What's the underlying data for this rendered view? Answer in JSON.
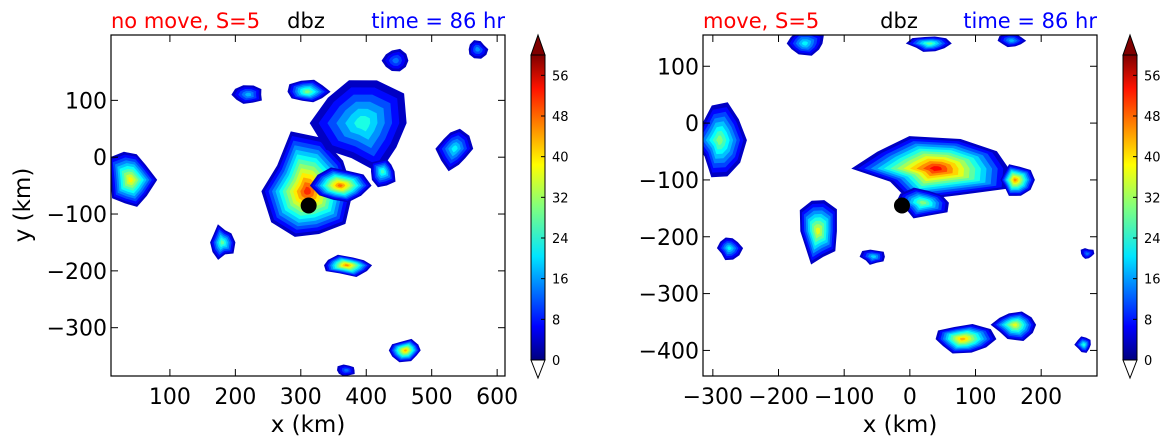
{
  "chart_data": [
    {
      "type": "heatmap",
      "title_left": "no move, S=5",
      "title_center": "dbz",
      "title_right": "time = 86 hr",
      "xlabel": "x (km)",
      "ylabel": "y (km)",
      "xlim": [
        10,
        612
      ],
      "ylim": [
        -385,
        215
      ],
      "xticks": [
        100,
        200,
        300,
        400,
        500,
        600
      ],
      "yticks": [
        100,
        0,
        -100,
        -200,
        -300
      ],
      "marker": {
        "x": 312,
        "y": -85
      },
      "colorbar": {
        "min": 0,
        "max": 60,
        "ticks": [
          0,
          8,
          16,
          24,
          32,
          40,
          48,
          56
        ],
        "extend": "both"
      },
      "cells": [
        {
          "x": 310,
          "y": -60,
          "rx": 70,
          "ry": 95,
          "peak": 50
        },
        {
          "x": 360,
          "y": -50,
          "rx": 40,
          "ry": 30,
          "peak": 46
        },
        {
          "x": 370,
          "y": -190,
          "rx": 40,
          "ry": 18,
          "peak": 44
        },
        {
          "x": 310,
          "y": 115,
          "rx": 30,
          "ry": 20,
          "peak": 30
        },
        {
          "x": 395,
          "y": 60,
          "rx": 70,
          "ry": 80,
          "peak": 24
        },
        {
          "x": 40,
          "y": -40,
          "rx": 35,
          "ry": 55,
          "peak": 38
        },
        {
          "x": 460,
          "y": -340,
          "rx": 25,
          "ry": 18,
          "peak": 42
        },
        {
          "x": 535,
          "y": 15,
          "rx": 25,
          "ry": 35,
          "peak": 22
        },
        {
          "x": 425,
          "y": -25,
          "rx": 20,
          "ry": 25,
          "peak": 26
        },
        {
          "x": 180,
          "y": -150,
          "rx": 18,
          "ry": 28,
          "peak": 28
        },
        {
          "x": 220,
          "y": 110,
          "rx": 22,
          "ry": 15,
          "peak": 18
        },
        {
          "x": 570,
          "y": 190,
          "rx": 15,
          "ry": 15,
          "peak": 16
        },
        {
          "x": 370,
          "y": -375,
          "rx": 14,
          "ry": 10,
          "peak": 14
        },
        {
          "x": 445,
          "y": 170,
          "rx": 18,
          "ry": 18,
          "peak": 14
        }
      ]
    },
    {
      "type": "heatmap",
      "title_left": "move, S=5",
      "title_center": "dbz",
      "title_right": "time = 86 hr",
      "xlabel": "x (km)",
      "ylabel": "",
      "xlim": [
        -315,
        285
      ],
      "ylim": [
        -445,
        155
      ],
      "xticks": [
        -300,
        -200,
        -100,
        0,
        100,
        200
      ],
      "yticks": [
        100,
        0,
        -100,
        -200,
        -300,
        -400
      ],
      "marker": {
        "x": -12,
        "y": -145
      },
      "colorbar": {
        "min": 0,
        "max": 60,
        "ticks": [
          0,
          8,
          16,
          24,
          32,
          40,
          48,
          56
        ],
        "extend": "both"
      },
      "cells": [
        {
          "x": 40,
          "y": -80,
          "rx": 110,
          "ry": 50,
          "peak": 52
        },
        {
          "x": 160,
          "y": -100,
          "rx": 25,
          "ry": 25,
          "peak": 44
        },
        {
          "x": 20,
          "y": -140,
          "rx": 40,
          "ry": 25,
          "peak": 30
        },
        {
          "x": -290,
          "y": -30,
          "rx": 35,
          "ry": 60,
          "peak": 30
        },
        {
          "x": -140,
          "y": -190,
          "rx": 30,
          "ry": 55,
          "peak": 36
        },
        {
          "x": -275,
          "y": -220,
          "rx": 18,
          "ry": 20,
          "peak": 22
        },
        {
          "x": -55,
          "y": -235,
          "rx": 18,
          "ry": 14,
          "peak": 20
        },
        {
          "x": 80,
          "y": -380,
          "rx": 45,
          "ry": 25,
          "peak": 42
        },
        {
          "x": 160,
          "y": -355,
          "rx": 35,
          "ry": 25,
          "peak": 36
        },
        {
          "x": 30,
          "y": 140,
          "rx": 30,
          "ry": 15,
          "peak": 28
        },
        {
          "x": -160,
          "y": 140,
          "rx": 30,
          "ry": 20,
          "peak": 22
        },
        {
          "x": 155,
          "y": 145,
          "rx": 20,
          "ry": 12,
          "peak": 18
        },
        {
          "x": 265,
          "y": -390,
          "rx": 12,
          "ry": 14,
          "peak": 24
        },
        {
          "x": 270,
          "y": -230,
          "rx": 10,
          "ry": 10,
          "peak": 14
        }
      ]
    }
  ]
}
